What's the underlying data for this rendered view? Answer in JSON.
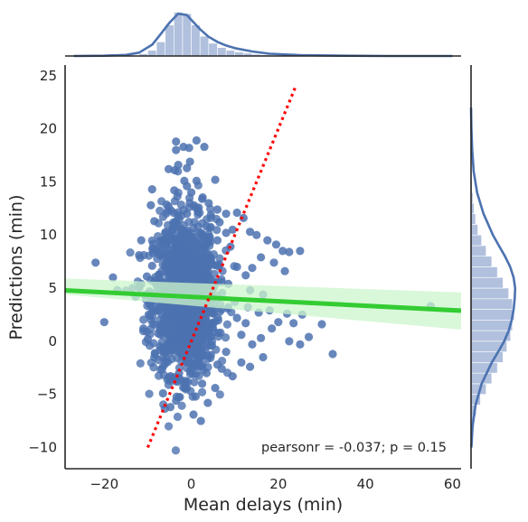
{
  "chart_data": {
    "type": "scatter",
    "kind": "jointplot",
    "xlabel": "Mean delays (min)",
    "ylabel": "Predictions (min)",
    "xlim": [
      -29,
      62
    ],
    "ylim": [
      -12,
      26
    ],
    "xticks": [
      -20,
      0,
      20,
      40,
      60
    ],
    "yticks": [
      -10,
      -5,
      0,
      5,
      10,
      15,
      20,
      25
    ],
    "grid": false,
    "annotation": "pearsonr = -0.037; p = 0.15",
    "colors": {
      "points": "#4c72b0",
      "regression_line": "#33cc33",
      "confidence_band": "#ccf5cc",
      "identity_line": "#ff0000",
      "marginal_fill": "#b0c0dd",
      "marginal_line": "#4c72b0",
      "axes": "#262626"
    },
    "regression": {
      "slope": -0.021,
      "intercept": 4.18,
      "ci_low_at_xmin": 4.4,
      "ci_high_at_xmin": 5.9,
      "ci_low_at_xmax": 1.1,
      "ci_high_at_xmax": 4.6
    },
    "identity_line": {
      "from": [
        -10,
        -10
      ],
      "to": [
        24,
        24
      ],
      "style": "dotted"
    },
    "points": [
      {
        "x": -3.5,
        "y": 18.8
      },
      {
        "x": -3.5,
        "y": 18.0
      },
      {
        "x": -1.8,
        "y": 18.3
      },
      {
        "x": -0.5,
        "y": 18.2
      },
      {
        "x": 1.2,
        "y": 18.9
      },
      {
        "x": 3.0,
        "y": 18.3
      },
      {
        "x": -5.2,
        "y": 16.2
      },
      {
        "x": -3.0,
        "y": 16.6
      },
      {
        "x": -0.3,
        "y": 16.9
      },
      {
        "x": -3.8,
        "y": 16.1
      },
      {
        "x": -1.0,
        "y": 16.3
      },
      {
        "x": -1.6,
        "y": 15.1
      },
      {
        "x": 1.2,
        "y": 15.1
      },
      {
        "x": 5.5,
        "y": 15.2
      },
      {
        "x": -3.9,
        "y": 14.2
      },
      {
        "x": -1.0,
        "y": 14.6
      },
      {
        "x": -9.0,
        "y": 14.3
      },
      {
        "x": 0.0,
        "y": 14.0
      },
      {
        "x": -9.3,
        "y": 12.8
      },
      {
        "x": -5.2,
        "y": 12.7
      },
      {
        "x": 2.5,
        "y": 13.4
      },
      {
        "x": 4.0,
        "y": 13.0
      },
      {
        "x": 6.0,
        "y": 12.4
      },
      {
        "x": -8.5,
        "y": 11.3
      },
      {
        "x": 8.0,
        "y": 12.0
      },
      {
        "x": 10.5,
        "y": 12.1
      },
      {
        "x": 12.0,
        "y": 11.6
      },
      {
        "x": 9.5,
        "y": 10.5
      },
      {
        "x": 13.5,
        "y": 10.3
      },
      {
        "x": 15.0,
        "y": 10.0
      },
      {
        "x": 17.5,
        "y": 9.5
      },
      {
        "x": 19.5,
        "y": 9.1
      },
      {
        "x": 21.0,
        "y": 8.5
      },
      {
        "x": 22.5,
        "y": 8.4
      },
      {
        "x": 25.0,
        "y": 8.5
      },
      {
        "x": 16.0,
        "y": 7.9
      },
      {
        "x": 19.0,
        "y": 7.4
      },
      {
        "x": 14.0,
        "y": 6.9
      },
      {
        "x": 21.5,
        "y": 6.6
      },
      {
        "x": 10.5,
        "y": 7.0
      },
      {
        "x": 12.5,
        "y": 6.2
      },
      {
        "x": 8.5,
        "y": 5.4
      },
      {
        "x": 13.5,
        "y": 4.8
      },
      {
        "x": 16.5,
        "y": 4.4
      },
      {
        "x": 10.0,
        "y": 3.7
      },
      {
        "x": 13.0,
        "y": 3.2
      },
      {
        "x": 18.0,
        "y": 2.9
      },
      {
        "x": 15.5,
        "y": 2.7
      },
      {
        "x": 22.0,
        "y": 2.6
      },
      {
        "x": 20.0,
        "y": 1.8
      },
      {
        "x": 23.5,
        "y": 1.7
      },
      {
        "x": 25.5,
        "y": 2.5
      },
      {
        "x": 18.5,
        "y": 1.2
      },
      {
        "x": 12.5,
        "y": 1.7
      },
      {
        "x": 16.0,
        "y": 0.3
      },
      {
        "x": 11.5,
        "y": 0.6
      },
      {
        "x": 22.5,
        "y": 0.0
      },
      {
        "x": 25.0,
        "y": -0.3
      },
      {
        "x": 27.0,
        "y": 0.4
      },
      {
        "x": 30.0,
        "y": 1.6
      },
      {
        "x": 32.5,
        "y": -1.2
      },
      {
        "x": 14.0,
        "y": -0.3
      },
      {
        "x": 16.5,
        "y": -1.5
      },
      {
        "x": 11.5,
        "y": -2.0
      },
      {
        "x": 13.5,
        "y": -2.4
      },
      {
        "x": 7.0,
        "y": -2.6
      },
      {
        "x": 9.5,
        "y": -3.3
      },
      {
        "x": 3.5,
        "y": -3.0
      },
      {
        "x": 6.0,
        "y": -2.2
      },
      {
        "x": 5.5,
        "y": -4.4
      },
      {
        "x": 2.5,
        "y": -4.0
      },
      {
        "x": 1.0,
        "y": -5.2
      },
      {
        "x": 3.8,
        "y": -5.8
      },
      {
        "x": -1.5,
        "y": -4.0
      },
      {
        "x": -2.8,
        "y": -3.0
      },
      {
        "x": -5.0,
        "y": -3.7
      },
      {
        "x": -6.5,
        "y": -4.9
      },
      {
        "x": -3.5,
        "y": -5.6
      },
      {
        "x": -4.8,
        "y": -6.2
      },
      {
        "x": 0.5,
        "y": -6.9
      },
      {
        "x": 2.2,
        "y": -7.5
      },
      {
        "x": -8.5,
        "y": -1.5
      },
      {
        "x": -7.2,
        "y": -0.5
      },
      {
        "x": -10.0,
        "y": 0.2
      },
      {
        "x": -11.0,
        "y": 1.2
      },
      {
        "x": -9.8,
        "y": 2.5
      },
      {
        "x": -8.8,
        "y": 3.2
      },
      {
        "x": -12.8,
        "y": 4.2
      },
      {
        "x": -13.5,
        "y": 5.0
      },
      {
        "x": -11.5,
        "y": 5.4
      },
      {
        "x": -10.2,
        "y": 6.1
      },
      {
        "x": -9.0,
        "y": 7.1
      },
      {
        "x": -12.0,
        "y": 8.1
      },
      {
        "x": -8.8,
        "y": 8.3
      },
      {
        "x": -11.5,
        "y": 9.5
      },
      {
        "x": -22.0,
        "y": 7.4
      },
      {
        "x": -18.0,
        "y": 6.0
      },
      {
        "x": -17.0,
        "y": 4.8
      },
      {
        "x": -20.0,
        "y": 1.8
      },
      {
        "x": 55.0,
        "y": 3.3
      },
      {
        "x": -6.0,
        "y": -1.0
      },
      {
        "x": -1.0,
        "y": -2.0
      },
      {
        "x": 4.5,
        "y": -1.3
      },
      {
        "x": 8.0,
        "y": -1.0
      },
      {
        "x": 10.5,
        "y": 2.2
      },
      {
        "x": 9.0,
        "y": 8.9
      },
      {
        "x": 8.0,
        "y": 10.2
      },
      {
        "x": 6.5,
        "y": 11.2
      },
      {
        "x": 4.5,
        "y": 11.9
      },
      {
        "x": 1.5,
        "y": 12.2
      },
      {
        "x": -1.0,
        "y": 12.0
      },
      {
        "x": -3.5,
        "y": 11.3
      },
      {
        "x": -6.0,
        "y": 10.2
      },
      {
        "x": -7.0,
        "y": 9.0
      },
      {
        "x": 6.0,
        "y": 9.5
      },
      {
        "x": 3.5,
        "y": 10.8
      }
    ],
    "core_cloud": {
      "center_x": -1.5,
      "center_y": 4.2,
      "sd_x": 3.6,
      "sd_y": 3.6,
      "note": "dense cluster of overlapping points"
    },
    "marginal_x": {
      "histogram": {
        "bins_start": -12,
        "bin_width": 2,
        "densities": [
          0.008,
          0.02,
          0.05,
          0.11,
          0.155,
          0.15,
          0.11,
          0.07,
          0.045,
          0.03,
          0.02,
          0.014,
          0.01,
          0.006,
          0.004
        ]
      },
      "kde": {
        "x": [
          -27,
          -20,
          -15,
          -12,
          -9,
          -7,
          -5,
          -3,
          -1,
          0,
          2,
          4,
          6,
          8,
          10,
          14,
          18,
          25,
          35,
          45,
          60
        ],
        "density": [
          0.0,
          0.001,
          0.004,
          0.012,
          0.04,
          0.078,
          0.118,
          0.15,
          0.145,
          0.128,
          0.095,
          0.068,
          0.05,
          0.037,
          0.028,
          0.016,
          0.008,
          0.003,
          0.001,
          0.0,
          0.0
        ]
      }
    },
    "marginal_y": {
      "histogram": {
        "bins_start": -10,
        "bin_width": 1,
        "densities": [
          0.002,
          0.004,
          0.008,
          0.014,
          0.025,
          0.04,
          0.055,
          0.07,
          0.085,
          0.095,
          0.105,
          0.11,
          0.115,
          0.11,
          0.1,
          0.085,
          0.07,
          0.055,
          0.04,
          0.028,
          0.018,
          0.012,
          0.008,
          0.005,
          0.003,
          0.002,
          0.001,
          0.001,
          0.001
        ]
      },
      "kde": {
        "y": [
          -10,
          -8,
          -6,
          -4,
          -2,
          -1,
          0,
          1,
          2,
          3,
          4,
          5,
          6,
          7,
          8,
          9,
          10,
          12,
          14,
          16,
          18,
          20,
          22
        ],
        "density": [
          0.001,
          0.004,
          0.012,
          0.028,
          0.055,
          0.072,
          0.088,
          0.1,
          0.108,
          0.113,
          0.116,
          0.117,
          0.113,
          0.104,
          0.09,
          0.074,
          0.058,
          0.033,
          0.016,
          0.007,
          0.003,
          0.001,
          0.0
        ]
      }
    }
  }
}
